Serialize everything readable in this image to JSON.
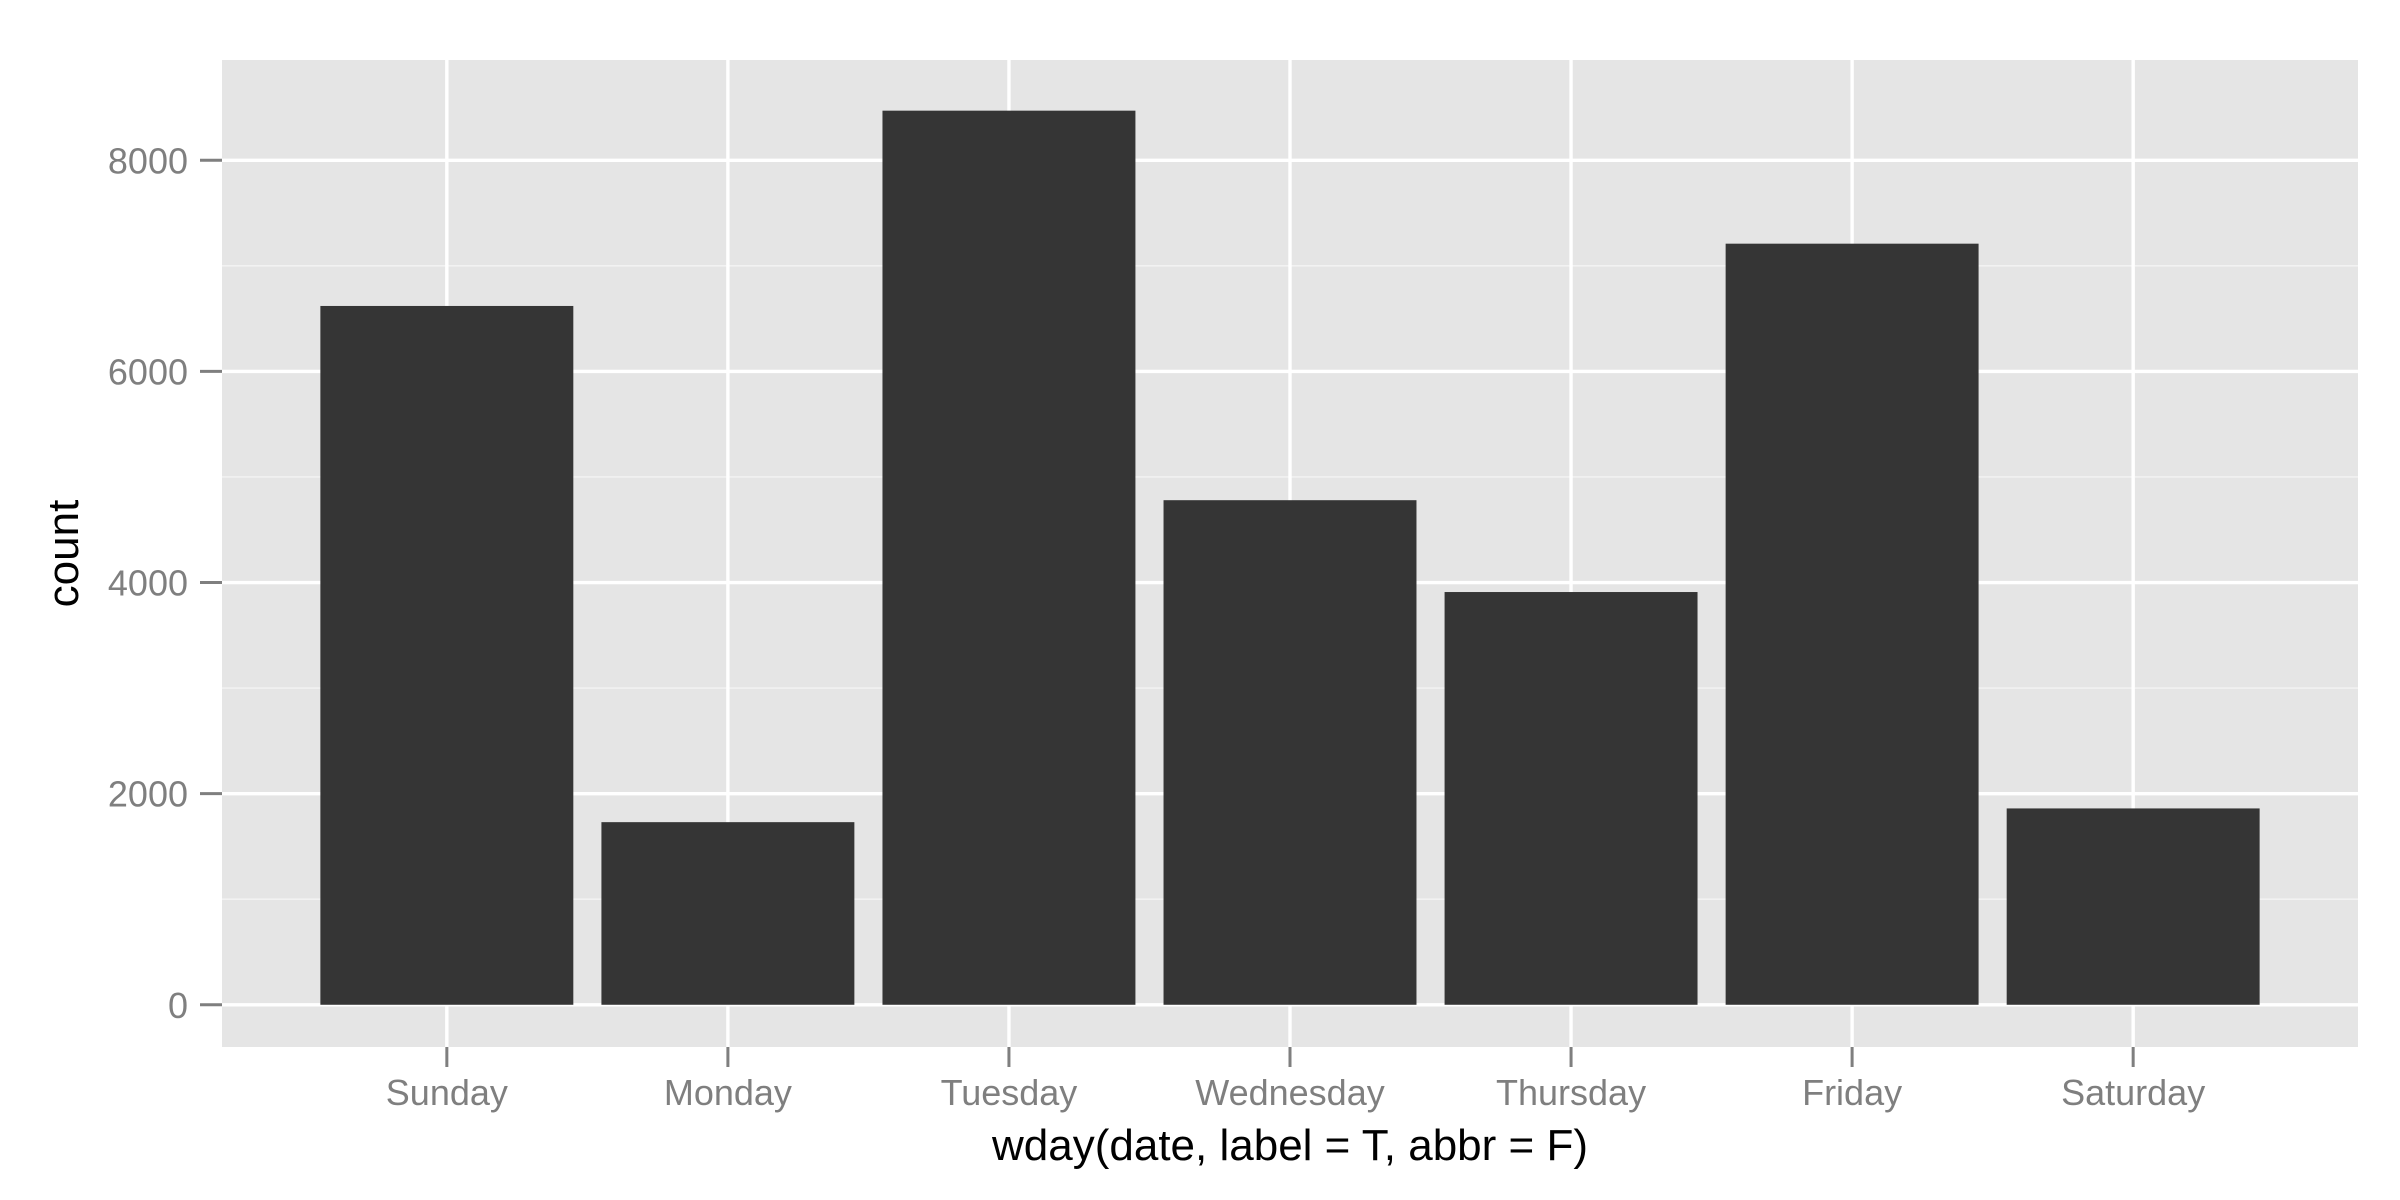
{
  "chart_data": {
    "type": "bar",
    "title": "",
    "xlabel": "wday(date, label = T, abbr = F)",
    "ylabel": "count",
    "categories": [
      "Sunday",
      "Monday",
      "Tuesday",
      "Wednesday",
      "Thursday",
      "Friday",
      "Saturday"
    ],
    "values": [
      6620,
      1730,
      8470,
      4780,
      3910,
      7210,
      1860
    ],
    "ylim": [
      -400,
      8950
    ],
    "yticks": [
      0,
      2000,
      4000,
      6000,
      8000
    ],
    "ytick_labels": [
      "0",
      "2000",
      "4000",
      "6000",
      "8000"
    ],
    "grid": true,
    "legend": "none"
  },
  "colors": {
    "panel": "#e5e5e5",
    "grid_major": "#ffffff",
    "grid_minor": "#f2f2f2",
    "bar": "#353535",
    "tick_mark": "#7f7f7f"
  }
}
